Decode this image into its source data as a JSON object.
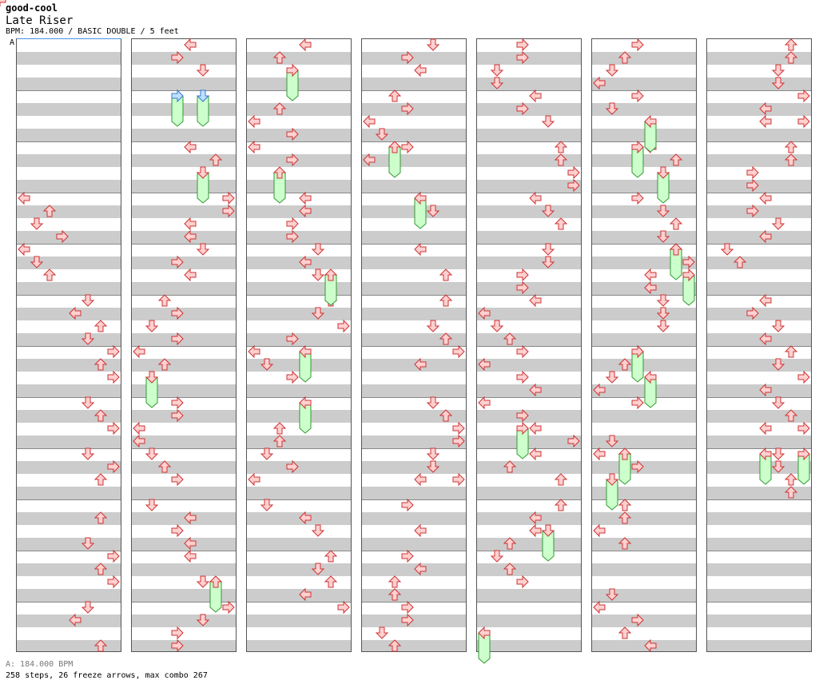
{
  "header": {
    "group": "good-cool",
    "title": "Late Riser",
    "meta": "BPM: 184.000 / BASIC DOUBLE / 5 feet"
  },
  "bpm_marker": "A",
  "footer": {
    "bpm_line": "A: 184.000 BPM",
    "stats_line": "258 steps, 26 freeze arrows, max combo 267"
  },
  "colors": {
    "arrow_fill": "#ffd0d0",
    "arrow_stroke": "#cc3333",
    "freeze_fill": "#ccffcc",
    "freeze_stroke": "#339933",
    "freeze_head_fill": "#bfe0ff",
    "freeze_head_stroke": "#3377cc",
    "band": "#cccccc"
  },
  "arrow_icon": "arrow-icon",
  "freeze_icon": "freeze-arrow-icon"
}
